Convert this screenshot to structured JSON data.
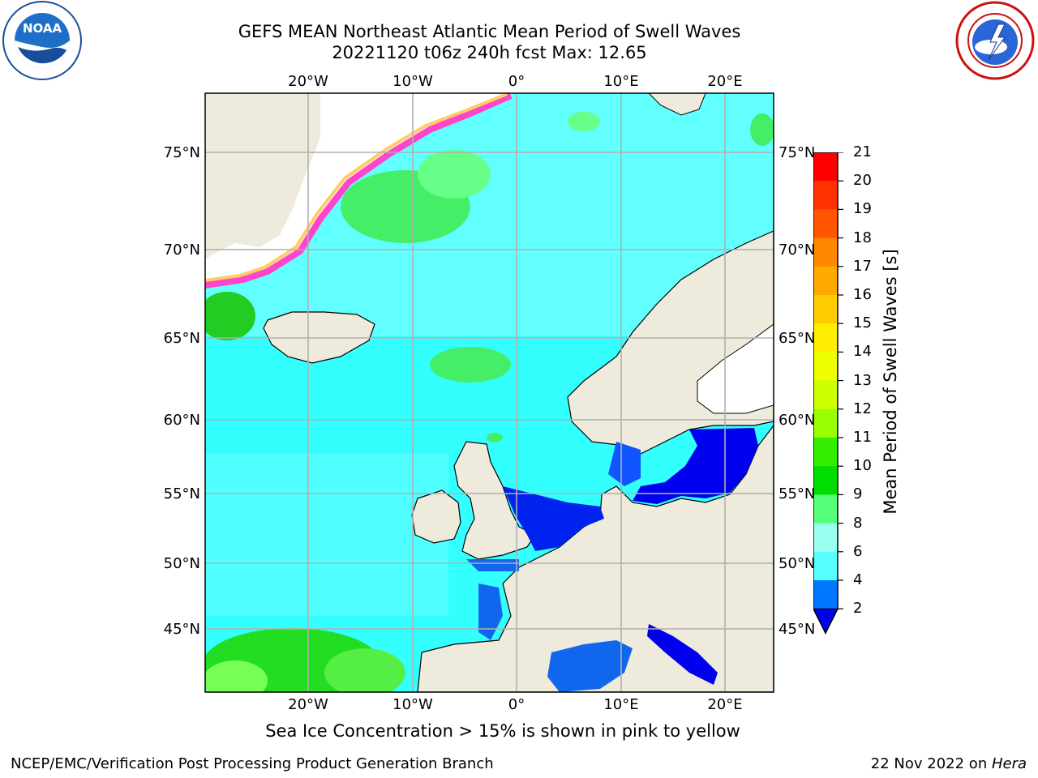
{
  "title": {
    "line1": "GEFS MEAN Northeast Atlantic Mean Period of Swell Waves",
    "line2": "20221120 t06z 240h fcst   Max: 12.65"
  },
  "map": {
    "lon_labels": [
      "20°W",
      "10°W",
      "0°",
      "10°E",
      "20°E"
    ],
    "lat_labels": [
      "75°N",
      "70°N",
      "65°N",
      "60°N",
      "55°N",
      "50°N",
      "45°N"
    ],
    "colors": {
      "land": "#eeebdc",
      "ocean_base": "#33ffff",
      "grid": "#b0b0b0",
      "ice": "#ffffff"
    }
  },
  "colorbar": {
    "label": "Mean Period of Swell Waves [s]",
    "ticks": [
      "21",
      "20",
      "19",
      "18",
      "17",
      "16",
      "15",
      "14",
      "13",
      "12",
      "11",
      "10",
      "9",
      "8",
      "6",
      "4",
      "2"
    ],
    "colors_top_to_bottom": [
      "#ff0000",
      "#ff3300",
      "#ff5500",
      "#ff8800",
      "#ffaa00",
      "#ffcc00",
      "#ffee00",
      "#eeff00",
      "#ccff00",
      "#99ff00",
      "#33ee00",
      "#00dd00",
      "#55ff77",
      "#99ffee",
      "#55ffff",
      "#00eeff",
      "#0077ff"
    ],
    "extend_color": "#0000ee"
  },
  "footnote": "Sea Ice Concentration > 15% is shown in pink to yellow",
  "credit": "NCEP/EMC/Verification Post Processing Product Generation Branch",
  "date_text": "22 Nov 2022 on ",
  "date_host": "Hera",
  "logos": {
    "left": "noaa-logo",
    "right": "national-weather-service-logo",
    "noaa_text": "NOAA",
    "nws_text": "NATIONAL WEATHER SERVICE"
  }
}
